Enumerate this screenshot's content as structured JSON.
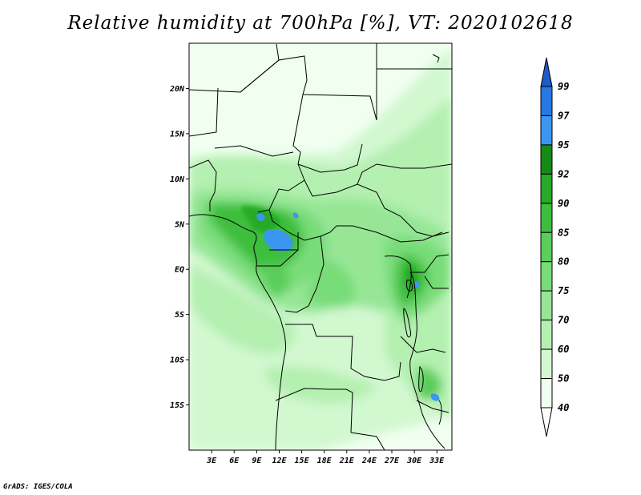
{
  "title": "Relative humidity at 700hPa [%], VT: 2020102618",
  "credit": "GrADS: IGES/COLA",
  "map": {
    "lon_range": [
      0,
      35
    ],
    "lat_range": [
      -20,
      25
    ],
    "lat_ticks": [
      {
        "label": "20N",
        "value": 20
      },
      {
        "label": "15N",
        "value": 15
      },
      {
        "label": "10N",
        "value": 10
      },
      {
        "label": "5N",
        "value": 5
      },
      {
        "label": "EQ",
        "value": 0
      },
      {
        "label": "5S",
        "value": -5
      },
      {
        "label": "10S",
        "value": -10
      },
      {
        "label": "15S",
        "value": -15
      }
    ],
    "lon_ticks": [
      {
        "label": "3E",
        "value": 3
      },
      {
        "label": "6E",
        "value": 6
      },
      {
        "label": "9E",
        "value": 9
      },
      {
        "label": "12E",
        "value": 12
      },
      {
        "label": "15E",
        "value": 15
      },
      {
        "label": "18E",
        "value": 18
      },
      {
        "label": "21E",
        "value": 21
      },
      {
        "label": "24E",
        "value": 24
      },
      {
        "label": "27E",
        "value": 27
      },
      {
        "label": "30E",
        "value": 30
      },
      {
        "label": "33E",
        "value": 33
      }
    ]
  },
  "colorbar": {
    "levels": [
      "40",
      "50",
      "60",
      "70",
      "75",
      "80",
      "85",
      "90",
      "92",
      "95",
      "97",
      "99"
    ],
    "colors": [
      "#f0fff0",
      "#d2f8d0",
      "#b4f0b0",
      "#96e696",
      "#78dc78",
      "#5acd5a",
      "#3cbe3c",
      "#28aa28",
      "#148c14",
      "#3c96f0",
      "#2878e6",
      "#1e5ac8"
    ],
    "below_color": "#ffffff",
    "above_color": "#1e5ac8"
  }
}
